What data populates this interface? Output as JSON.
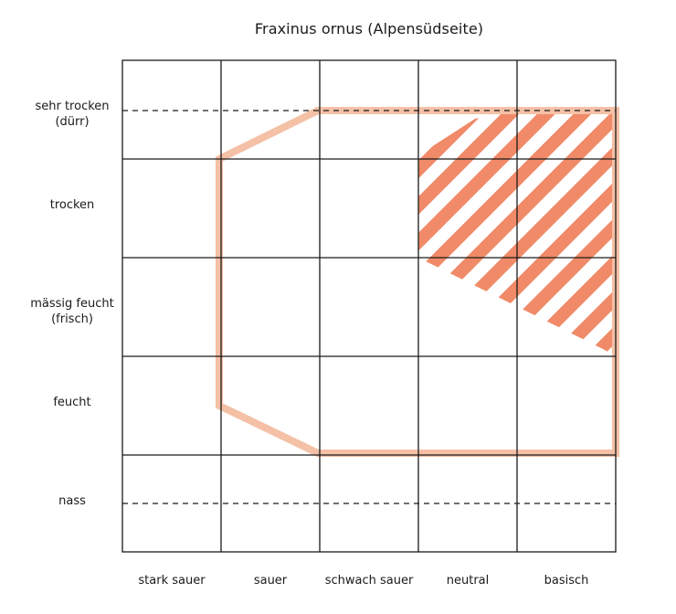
{
  "title": "Fraxinus ornus (Alpensüdseite)",
  "rows": [
    {
      "label_lines": [
        "sehr trocken",
        "(dürr)"
      ]
    },
    {
      "label_lines": [
        "trocken"
      ]
    },
    {
      "label_lines": [
        "mässig feucht",
        "(frisch)"
      ]
    },
    {
      "label_lines": [
        "feucht"
      ]
    },
    {
      "label_lines": [
        "nass"
      ]
    }
  ],
  "columns": [
    {
      "label": "stark sauer"
    },
    {
      "label": "sauer"
    },
    {
      "label": "schwach sauer"
    },
    {
      "label": "neutral"
    },
    {
      "label": "basisch"
    }
  ],
  "colors": {
    "grid": "#1a1a1a",
    "range_outline": "#f4c0a6",
    "optimum_hatch": "#f08a68"
  }
}
